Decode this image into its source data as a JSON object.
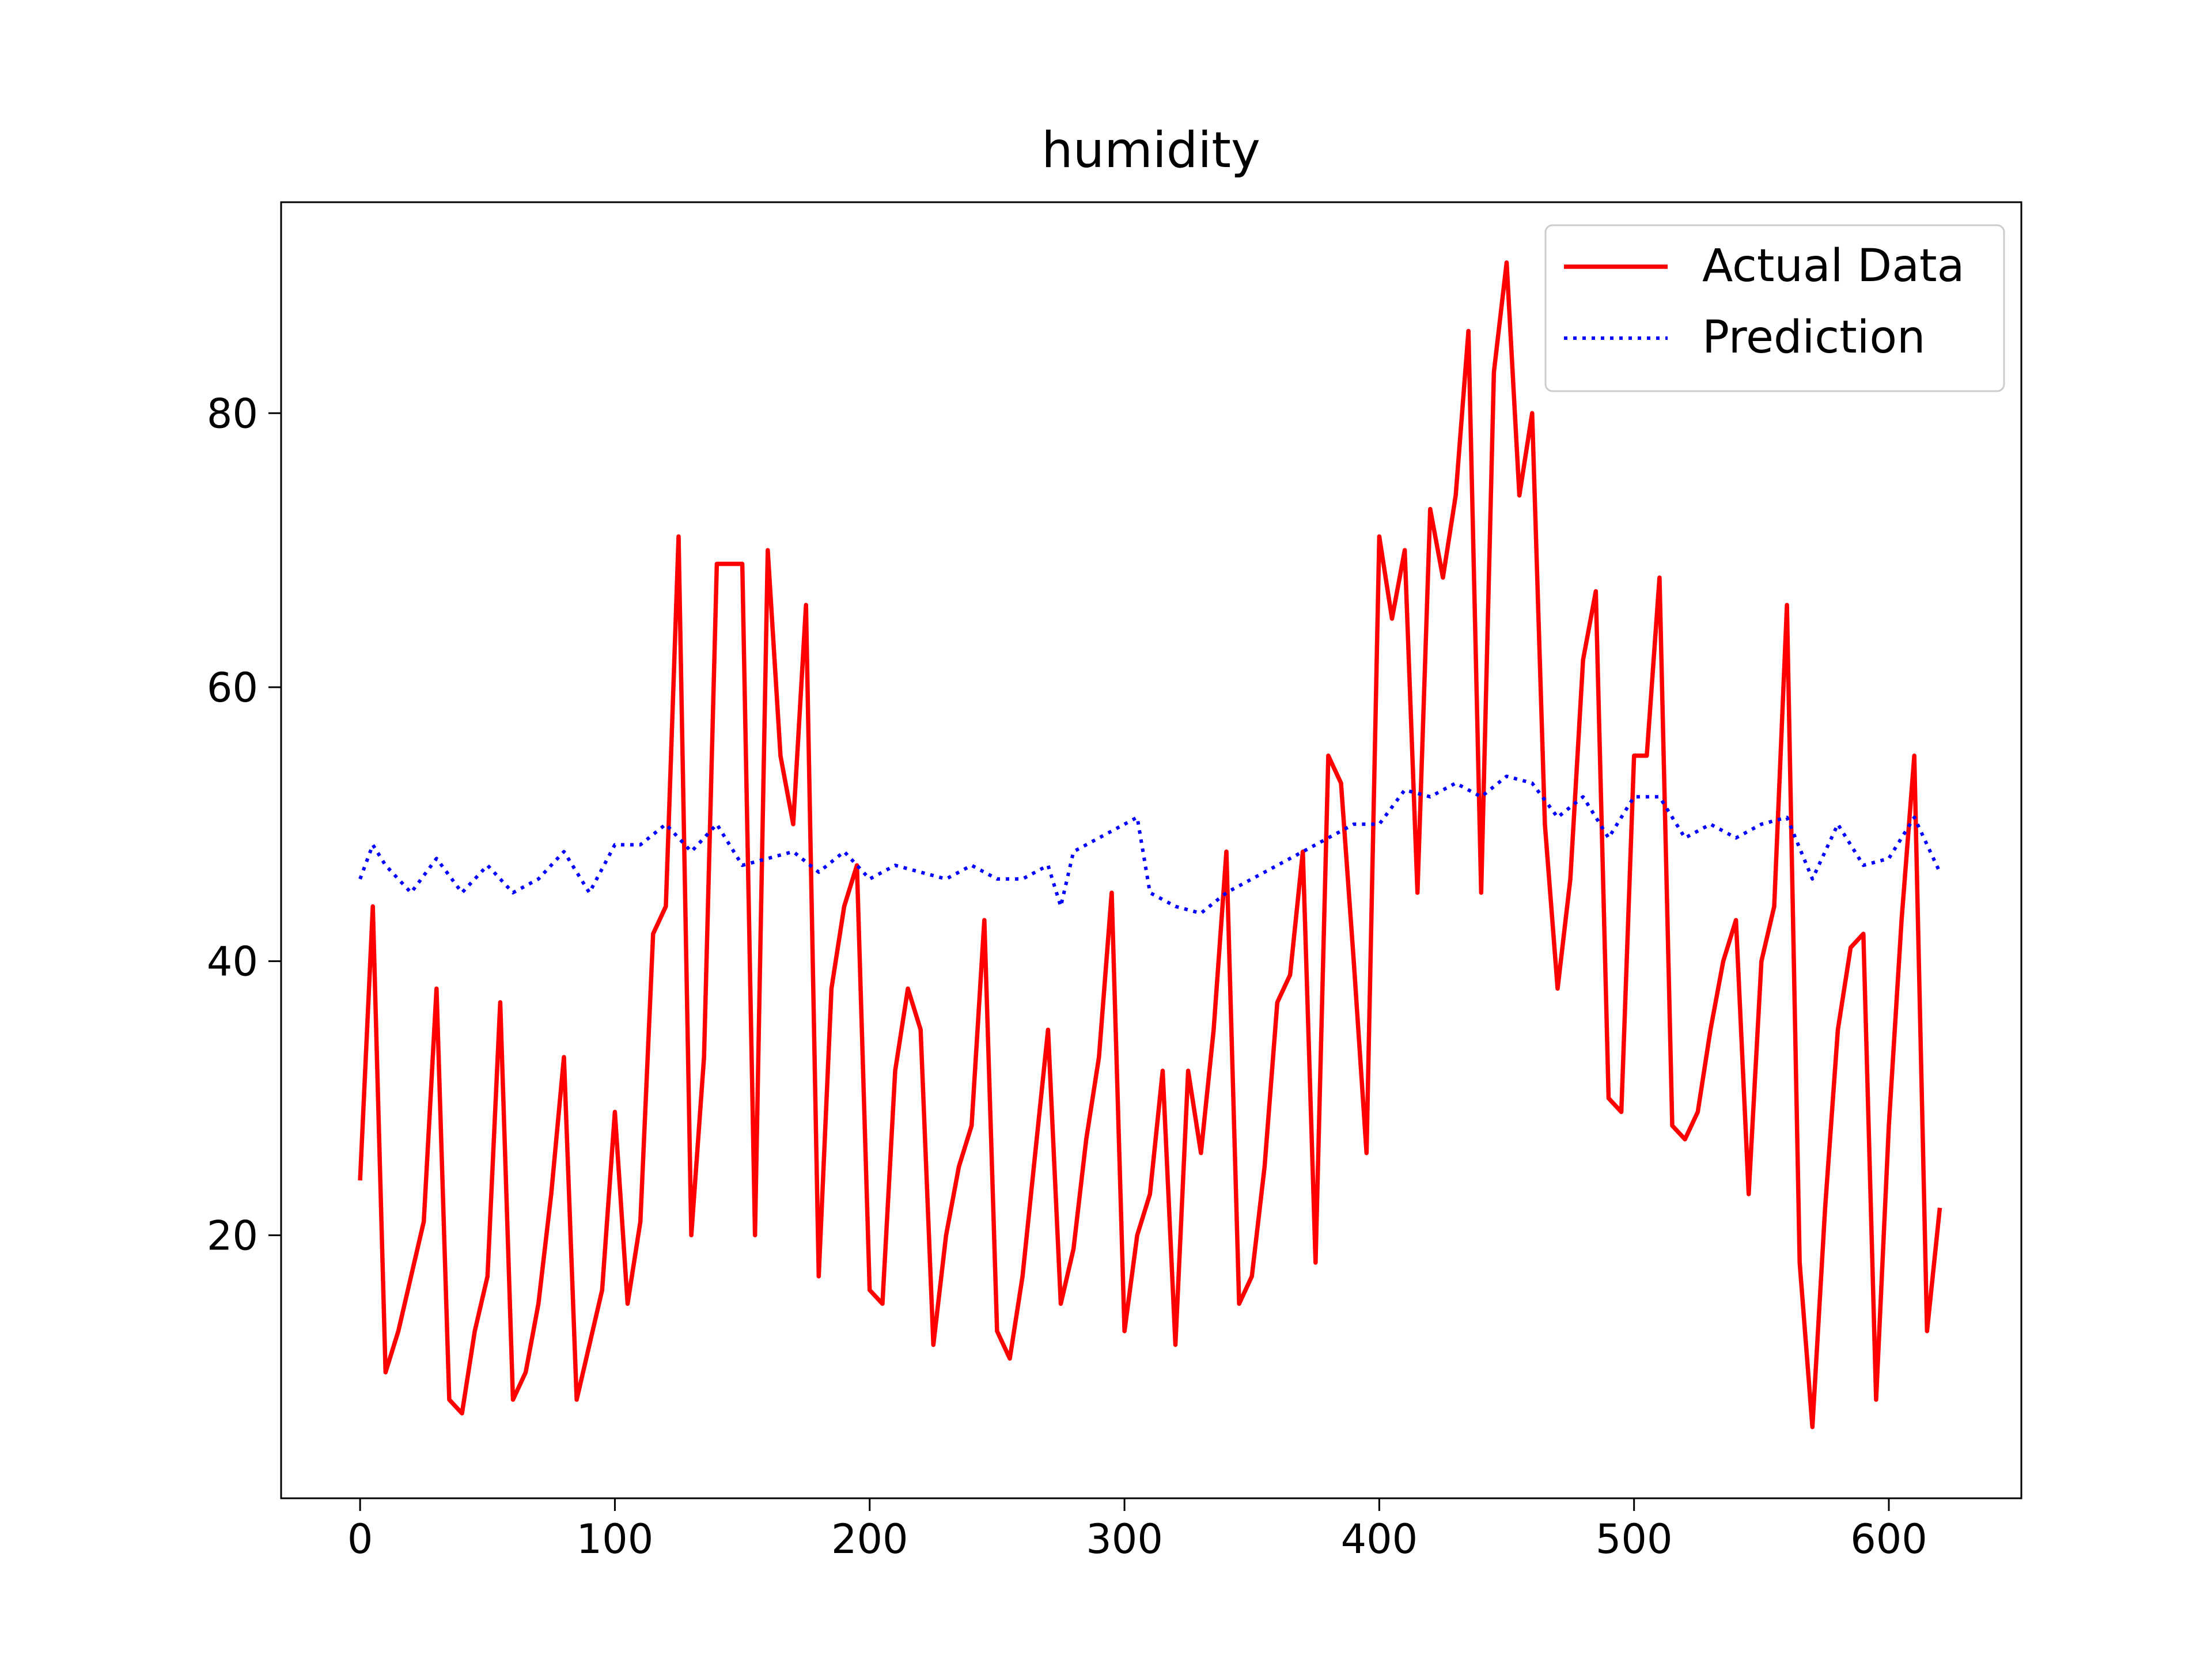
{
  "chart_data": {
    "type": "line",
    "title": "humidity",
    "xlim": [
      -31,
      652
    ],
    "xticks": [
      0,
      100,
      200,
      300,
      400,
      500,
      600
    ],
    "ylim": [
      0.8,
      95.4
    ],
    "yticks": [
      20,
      40,
      60,
      80
    ],
    "grid": false,
    "legend": "upper right",
    "series": [
      {
        "name": "Actual Data",
        "color": "#ff0000",
        "style": "solid",
        "x": [
          0,
          5,
          10,
          15,
          20,
          25,
          30,
          35,
          40,
          45,
          50,
          55,
          60,
          65,
          70,
          75,
          80,
          85,
          90,
          95,
          100,
          105,
          110,
          115,
          120,
          125,
          130,
          135,
          140,
          145,
          150,
          155,
          160,
          165,
          170,
          175,
          180,
          185,
          190,
          195,
          200,
          205,
          210,
          215,
          220,
          225,
          230,
          235,
          240,
          245,
          250,
          255,
          260,
          265,
          270,
          275,
          280,
          285,
          290,
          295,
          300,
          305,
          310,
          315,
          320,
          325,
          330,
          335,
          340,
          345,
          350,
          355,
          360,
          365,
          370,
          375,
          380,
          385,
          390,
          395,
          400,
          405,
          410,
          415,
          420,
          425,
          430,
          435,
          440,
          445,
          450,
          455,
          460,
          465,
          470,
          475,
          480,
          485,
          490,
          495,
          500,
          505,
          510,
          515,
          520,
          525,
          530,
          535,
          540,
          545,
          550,
          555,
          560,
          565,
          570,
          575,
          580,
          585,
          590,
          595,
          600,
          605,
          610,
          615,
          620
        ],
        "values": [
          24,
          44,
          10,
          13,
          17,
          21,
          38,
          8,
          7,
          13,
          17,
          37,
          8,
          10,
          15,
          23,
          33,
          8,
          12,
          16,
          29,
          15,
          21,
          42,
          44,
          71,
          20,
          33,
          69,
          69,
          69,
          20,
          70,
          55,
          50,
          66,
          17,
          38,
          44,
          47,
          16,
          15,
          32,
          38,
          35,
          12,
          20,
          25,
          28,
          43,
          13,
          11,
          17,
          26,
          35,
          15,
          19,
          27,
          33,
          45,
          13,
          20,
          23,
          32,
          12,
          32,
          26,
          35,
          48,
          15,
          17,
          25,
          37,
          39,
          48,
          18,
          55,
          53,
          40,
          26,
          71,
          65,
          70,
          45,
          73,
          68,
          74,
          86,
          45,
          83,
          91,
          74,
          80,
          50,
          38,
          46,
          62,
          67,
          30,
          29,
          55,
          55,
          68,
          28,
          27,
          29,
          35,
          40,
          43,
          23,
          40,
          44,
          66,
          18,
          6,
          22,
          35,
          41,
          42,
          8,
          28,
          43,
          55,
          13,
          22
        ]
      },
      {
        "name": "Prediction",
        "color": "#0000ff",
        "style": "dotted",
        "x": [
          0,
          5,
          10,
          20,
          30,
          40,
          50,
          60,
          70,
          80,
          90,
          100,
          110,
          120,
          130,
          140,
          150,
          160,
          170,
          180,
          190,
          200,
          210,
          220,
          230,
          240,
          250,
          260,
          270,
          275,
          280,
          290,
          300,
          305,
          310,
          320,
          330,
          340,
          350,
          360,
          370,
          380,
          390,
          400,
          410,
          420,
          430,
          440,
          450,
          460,
          470,
          480,
          490,
          500,
          510,
          520,
          530,
          540,
          550,
          560,
          570,
          580,
          590,
          600,
          610,
          620
        ],
        "values": [
          46,
          48.5,
          47,
          45,
          47.5,
          45,
          47,
          45,
          46,
          48,
          45,
          48.5,
          48.5,
          50,
          48,
          50,
          47,
          47.5,
          48,
          46.5,
          48,
          46,
          47,
          46.5,
          46,
          47,
          46,
          46,
          47,
          44,
          48,
          49,
          50,
          50.5,
          45,
          44,
          43.5,
          45,
          46,
          47,
          48,
          49,
          50,
          50,
          52.5,
          52,
          53,
          52,
          53.5,
          53,
          50.5,
          52,
          49,
          52,
          52,
          49,
          50,
          49,
          50,
          50.5,
          46,
          50,
          47,
          47.5,
          50.5,
          46.5
        ]
      }
    ]
  }
}
